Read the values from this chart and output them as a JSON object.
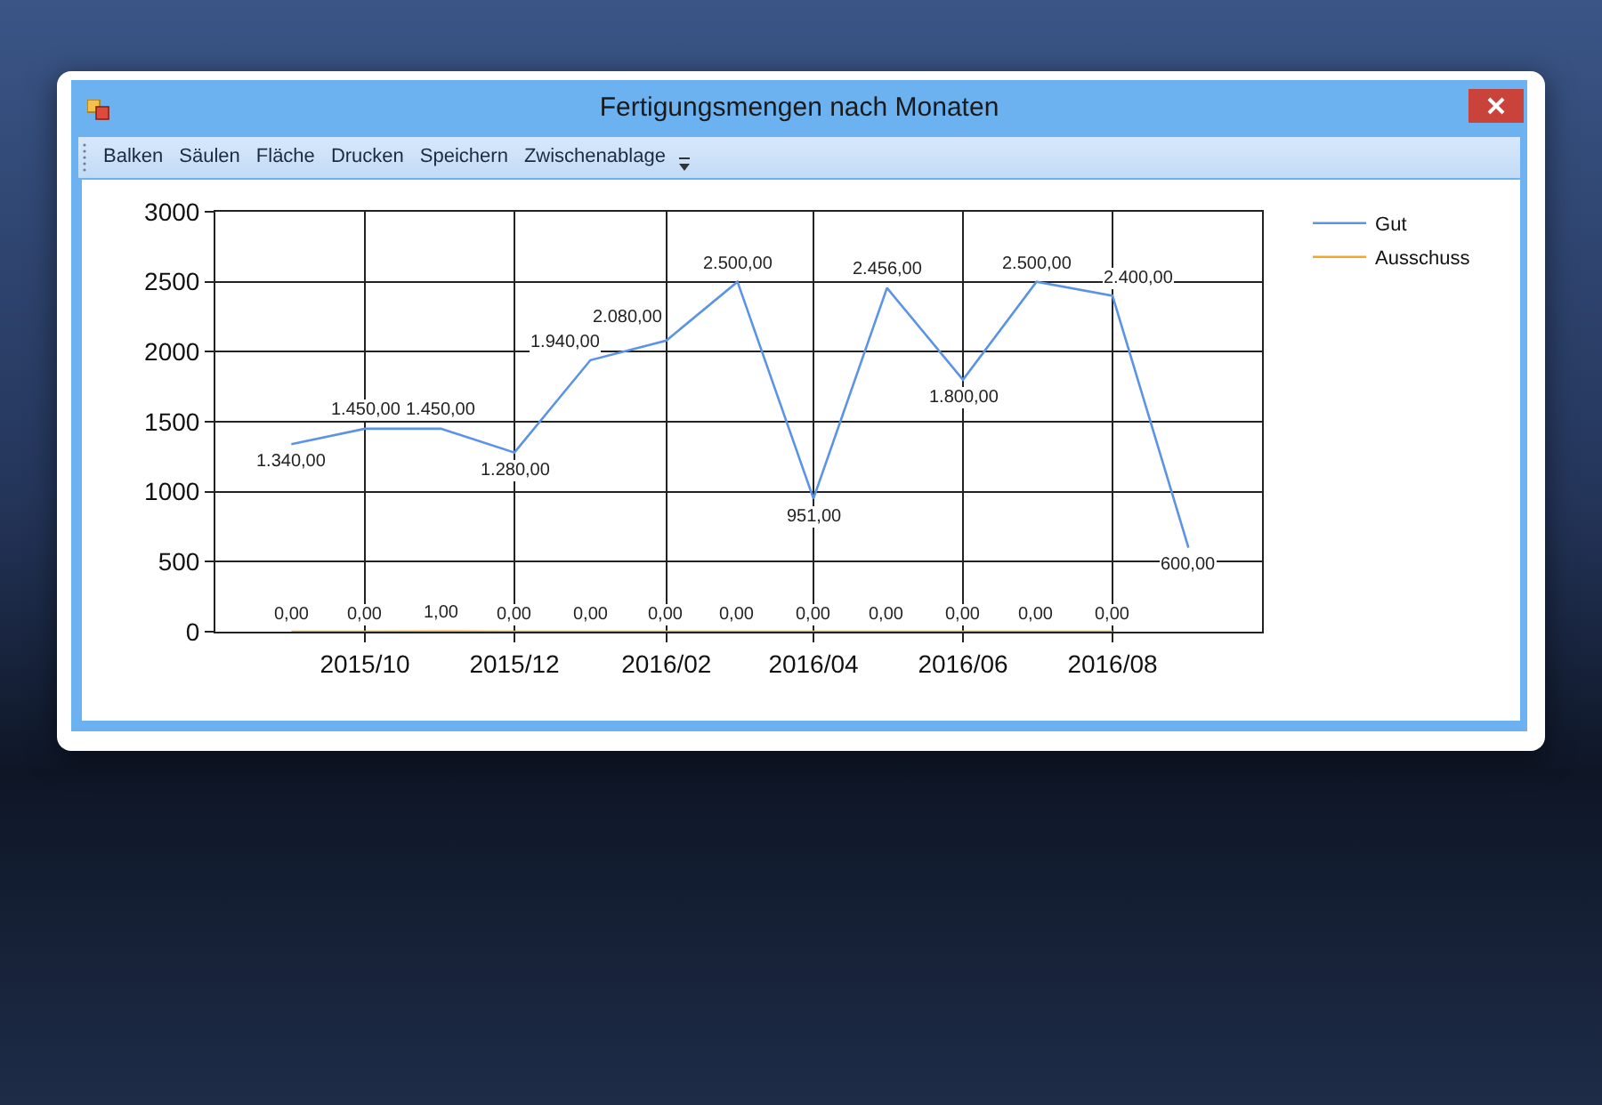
{
  "chart_data": {
    "type": "line",
    "title": "Fertigungsmengen nach Monaten",
    "annotations": [
      "Balken",
      "Säulen",
      "Fläche",
      "Drucken",
      "Speichern",
      "Zwischenablage"
    ],
    "x": [
      "2015-09",
      "2015-10",
      "2015-11",
      "2015-12",
      "2016-01",
      "2016-02",
      "2016-03",
      "2016-04",
      "2016-05",
      "2016-06",
      "2016-07",
      "2016-08",
      "2016-09"
    ],
    "series": [
      {
        "name": "Gut",
        "color": "#5b93e6",
        "values": [
          1340,
          1450,
          1450,
          1280,
          1940,
          2080,
          2500,
          951,
          2456,
          1800,
          2500,
          2400,
          600
        ],
        "value_labels": [
          "1.340,00",
          "1.450,00",
          "1.450,00",
          "1.280,00",
          "1.940,00",
          "2.080,00",
          "2.500,00",
          "951,00",
          "2.456,00",
          "1.800,00",
          "2.500,00",
          "2.400,00",
          "600,00"
        ]
      },
      {
        "name": "Ausschuss",
        "color": "#f5a623",
        "values": [
          0,
          0,
          1,
          0,
          0,
          0,
          0,
          0,
          0,
          0,
          0,
          0,
          null
        ],
        "value_labels": [
          "0,00",
          "0,00",
          "1,00",
          "0,00",
          "0,00",
          "0,00",
          "0,00",
          "0,00",
          "0,00",
          "0,00",
          "0,00",
          "0,00",
          null
        ]
      }
    ],
    "xlim": [
      "2015-08",
      "2016-10"
    ],
    "xticks": [
      {
        "value": "2015-10",
        "label": "2015/10"
      },
      {
        "value": "2015-12",
        "label": "2015/12"
      },
      {
        "value": "2016-02",
        "label": "2016/02"
      },
      {
        "value": "2016-04",
        "label": "2016/04"
      },
      {
        "value": "2016-06",
        "label": "2016/06"
      },
      {
        "value": "2016-08",
        "label": "2016/08"
      }
    ],
    "ylim": [
      0,
      3000
    ],
    "yticks": [
      0,
      500,
      1000,
      1500,
      2000,
      2500,
      3000
    ],
    "grid": true,
    "legend": "top right"
  }
}
